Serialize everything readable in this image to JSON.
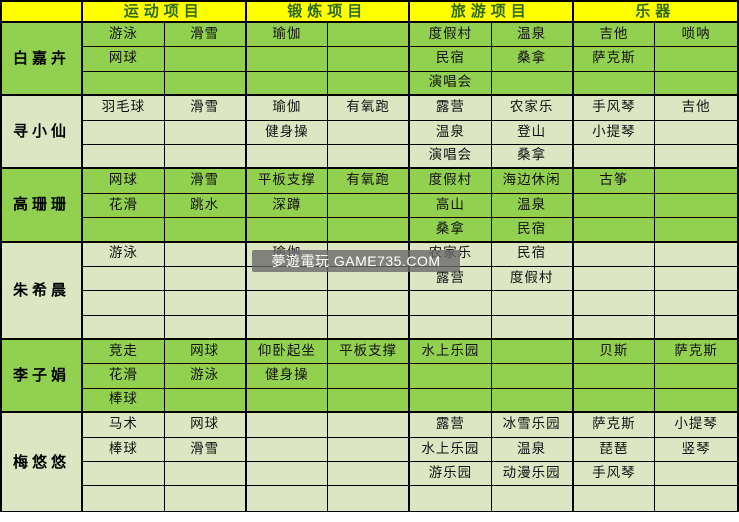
{
  "watermark": "夢遊電玩 GAME735.COM",
  "colors": {
    "header_bg": "#FFFF00",
    "header_text": "#2F6B1A",
    "block_green": "#92D050",
    "block_pale": "#DCE6C3",
    "border": "#000000",
    "watermark_bg": "rgba(105,105,105,0.8)"
  },
  "table": {
    "corner_label": "",
    "categories": [
      "运动项目",
      "锻炼项目",
      "旅游项目",
      "乐器"
    ],
    "people": [
      {
        "name": "白嘉卉",
        "shade": "green",
        "rows": [
          [
            "游泳",
            "滑雪",
            "瑜伽",
            "",
            "度假村",
            "温泉",
            "吉他",
            "唢呐"
          ],
          [
            "网球",
            "",
            "",
            "",
            "民宿",
            "桑拿",
            "萨克斯",
            ""
          ],
          [
            "",
            "",
            "",
            "",
            "演唱会",
            "",
            "",
            ""
          ]
        ]
      },
      {
        "name": "寻小仙",
        "shade": "pale",
        "rows": [
          [
            "羽毛球",
            "滑雪",
            "瑜伽",
            "有氧跑",
            "露营",
            "农家乐",
            "手风琴",
            "吉他"
          ],
          [
            "",
            "",
            "健身操",
            "",
            "温泉",
            "登山",
            "小提琴",
            ""
          ],
          [
            "",
            "",
            "",
            "",
            "演唱会",
            "桑拿",
            "",
            ""
          ]
        ]
      },
      {
        "name": "高珊珊",
        "shade": "green",
        "rows": [
          [
            "网球",
            "滑雪",
            "平板支撑",
            "有氧跑",
            "度假村",
            "海边休闲",
            "古筝",
            ""
          ],
          [
            "花滑",
            "跳水",
            "深蹲",
            "",
            "高山",
            "温泉",
            "",
            ""
          ],
          [
            "",
            "",
            "",
            "",
            "桑拿",
            "民宿",
            "",
            ""
          ]
        ]
      },
      {
        "name": "朱希晨",
        "shade": "pale",
        "rows": [
          [
            "游泳",
            "",
            "瑜伽",
            "",
            "农家乐",
            "民宿",
            "",
            ""
          ],
          [
            "",
            "",
            "",
            "",
            "露营",
            "度假村",
            "",
            ""
          ],
          [
            "",
            "",
            "",
            "",
            "",
            "",
            "",
            ""
          ],
          [
            "",
            "",
            "",
            "",
            "",
            "",
            "",
            ""
          ]
        ]
      },
      {
        "name": "李子娟",
        "shade": "green",
        "rows": [
          [
            "竞走",
            "网球",
            "仰卧起坐",
            "平板支撑",
            "水上乐园",
            "",
            "贝斯",
            "萨克斯"
          ],
          [
            "花滑",
            "游泳",
            "健身操",
            "",
            "",
            "",
            "",
            ""
          ],
          [
            "棒球",
            "",
            "",
            "",
            "",
            "",
            "",
            ""
          ]
        ]
      },
      {
        "name": "梅悠悠",
        "shade": "pale",
        "rows": [
          [
            "马术",
            "网球",
            "",
            "",
            "露营",
            "冰雪乐园",
            "萨克斯",
            "小提琴"
          ],
          [
            "棒球",
            "滑雪",
            "",
            "",
            "水上乐园",
            "温泉",
            "琵琶",
            "竖琴"
          ],
          [
            "",
            "",
            "",
            "",
            "游乐园",
            "动漫乐园",
            "手风琴",
            ""
          ],
          [
            "",
            "",
            "",
            "",
            "",
            "",
            "",
            ""
          ]
        ]
      }
    ]
  }
}
